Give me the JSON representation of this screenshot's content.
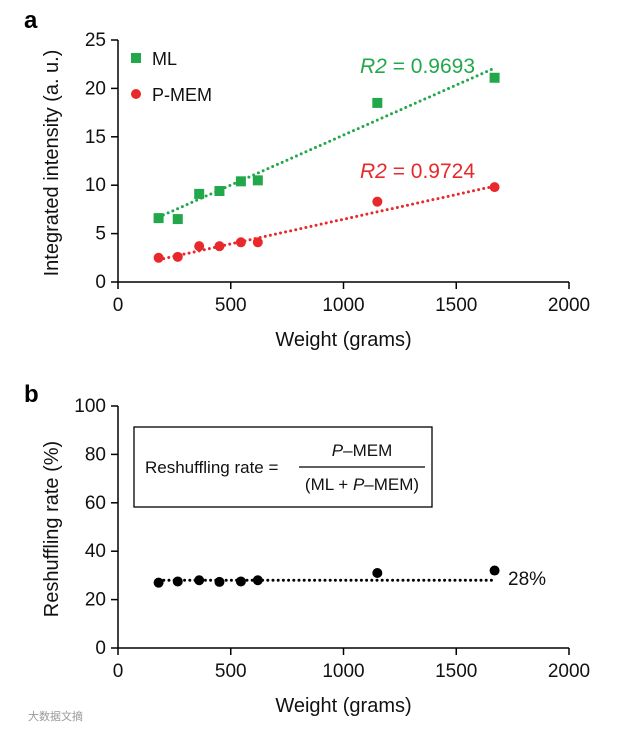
{
  "watermark": "大数据文摘",
  "chart_data": [
    {
      "panel": "a",
      "type": "scatter",
      "xlabel": "Weight (grams)",
      "ylabel": "Integrated intensity (a. u.)",
      "xlim": [
        0,
        2000
      ],
      "ylim": [
        0,
        25
      ],
      "xticks": [
        0,
        500,
        1000,
        1500,
        2000
      ],
      "yticks": [
        0,
        5,
        10,
        15,
        20,
        25
      ],
      "legend_position": "top-left",
      "series": [
        {
          "name": "ML",
          "marker": "square",
          "color": "#22a84a",
          "x": [
            180,
            265,
            360,
            450,
            545,
            620,
            1150,
            1670
          ],
          "y": [
            6.6,
            6.5,
            9.1,
            9.4,
            10.4,
            10.5,
            18.5,
            21.1
          ],
          "fit": {
            "x": [
              180,
              1670
            ],
            "y": [
              6.7,
              22.1
            ],
            "style": "dotted"
          },
          "annotation": {
            "prefix": "R2",
            "text": " = 0.9693"
          }
        },
        {
          "name": "P-MEM",
          "marker": "circle",
          "color": "#e8292b",
          "x": [
            180,
            265,
            360,
            450,
            545,
            620,
            1150,
            1670
          ],
          "y": [
            2.5,
            2.6,
            3.7,
            3.7,
            4.1,
            4.1,
            8.3,
            9.8
          ],
          "fit": {
            "x": [
              180,
              1670
            ],
            "y": [
              2.3,
              9.9
            ],
            "style": "dotted"
          },
          "annotation": {
            "prefix": "R2",
            "text": " = 0.9724"
          }
        }
      ]
    },
    {
      "panel": "b",
      "type": "scatter",
      "xlabel": "Weight (grams)",
      "ylabel": "Reshuffling rate (%)",
      "xlim": [
        0,
        2000
      ],
      "ylim": [
        0,
        100
      ],
      "xticks": [
        0,
        500,
        1000,
        1500,
        2000
      ],
      "yticks": [
        0,
        20,
        40,
        60,
        80,
        100
      ],
      "series": [
        {
          "name": "",
          "marker": "circle",
          "color": "#000000",
          "x": [
            180,
            265,
            360,
            450,
            545,
            620,
            1150,
            1670
          ],
          "y": [
            27,
            27.5,
            28,
            27.3,
            27.5,
            28,
            31,
            32
          ],
          "fit": {
            "x": [
              180,
              1670
            ],
            "y": [
              28,
              28
            ],
            "style": "dotted"
          }
        }
      ],
      "annotations": [
        {
          "text": "28%",
          "x": 1720,
          "y": 28
        }
      ],
      "formula": {
        "left": "Reshuffling rate =",
        "numerator": {
          "italic": "P",
          "rest": "–MEM"
        },
        "denominator": {
          "pre": "(ML + ",
          "italic": "P",
          "rest": "–MEM)"
        }
      }
    }
  ]
}
